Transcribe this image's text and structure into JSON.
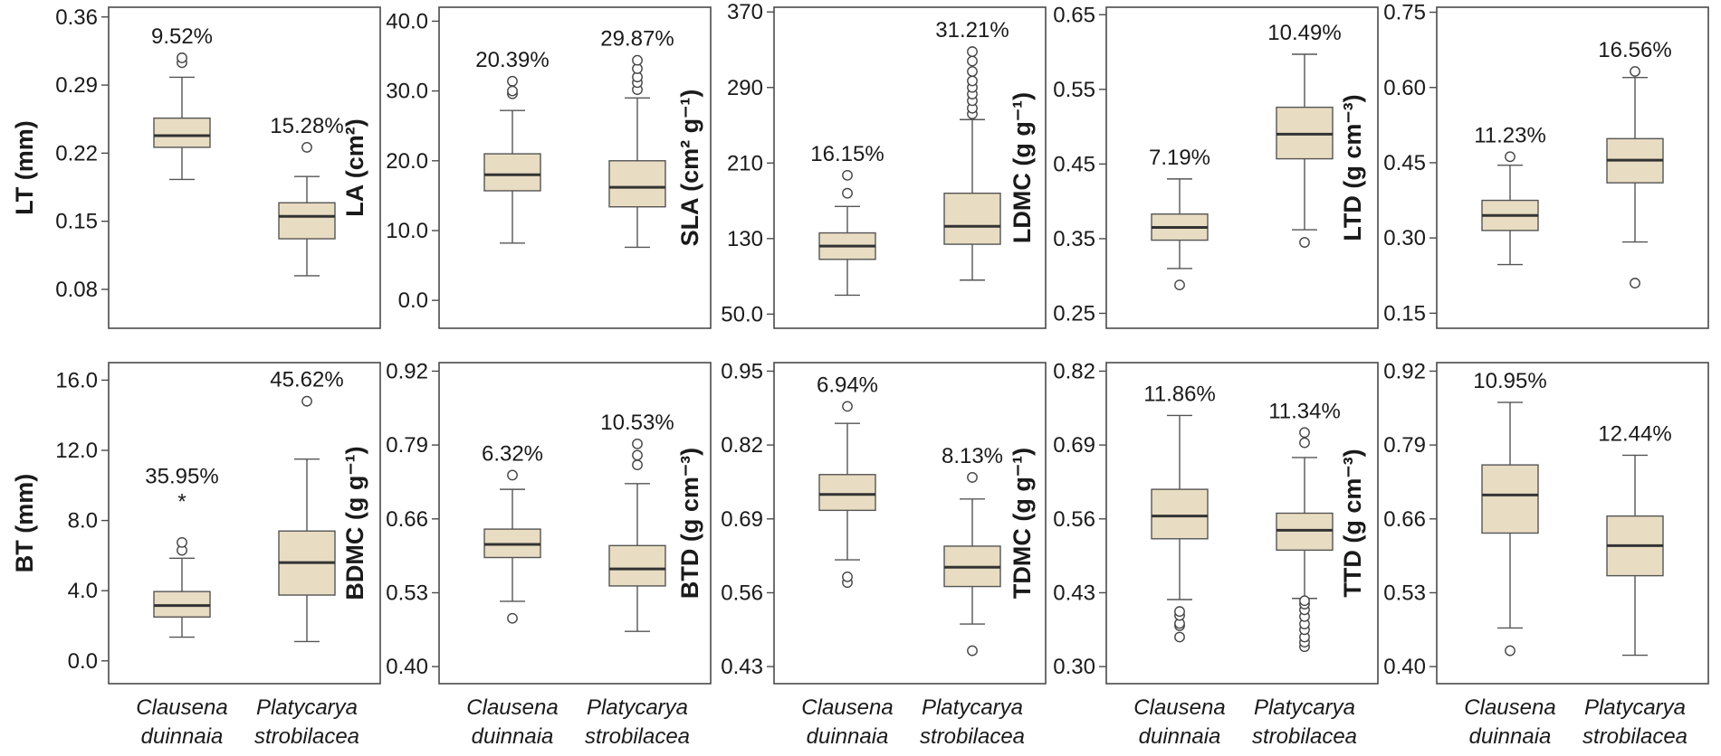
{
  "chart_data": [
    {
      "id": "lt",
      "type": "box",
      "ylabel": "LT (mm)",
      "ylim": [
        0.04,
        0.37
      ],
      "yticks": [
        0.08,
        0.15,
        0.22,
        0.29,
        0.36
      ],
      "ytick_labels": [
        "0.08",
        "0.15",
        "0.22",
        "0.29",
        "0.36"
      ],
      "categories": [
        "Clausena duinnaia",
        "Platycarya strobilacea"
      ],
      "boxes": [
        {
          "min": 0.193,
          "q1": 0.226,
          "median": 0.238,
          "q3": 0.256,
          "max": 0.298,
          "outliers": [
            0.313,
            0.318
          ],
          "cv": "9.52%"
        },
        {
          "min": 0.094,
          "q1": 0.132,
          "median": 0.155,
          "q3": 0.169,
          "max": 0.196,
          "outliers": [
            0.226
          ],
          "cv": "15.28%"
        }
      ]
    },
    {
      "id": "la",
      "type": "box",
      "ylabel": "LA (cm²)",
      "ylim": [
        -4,
        42
      ],
      "yticks": [
        0,
        10,
        20,
        30,
        40
      ],
      "ytick_labels": [
        "0.0",
        "10.0",
        "20.0",
        "30.0",
        "40.0"
      ],
      "categories": [
        "Clausena duinnaia",
        "Platycarya strobilacea"
      ],
      "boxes": [
        {
          "min": 8.2,
          "q1": 15.7,
          "median": 18,
          "q3": 21,
          "max": 27.2,
          "outliers": [
            29.6,
            30,
            31.4
          ],
          "cv": "20.39%"
        },
        {
          "min": 7.6,
          "q1": 13.4,
          "median": 16.2,
          "q3": 20,
          "max": 29,
          "outliers": [
            30.2,
            31.2,
            32,
            33.2,
            34.4
          ],
          "cv": "29.87%"
        }
      ]
    },
    {
      "id": "sla",
      "type": "box",
      "ylabel": "SLA (cm² g⁻¹)",
      "ylim": [
        35,
        375
      ],
      "yticks": [
        50,
        130,
        210,
        290,
        370
      ],
      "ytick_labels": [
        "50.0",
        "130",
        "210",
        "290",
        "370"
      ],
      "categories": [
        "Clausena duinnaia",
        "Platycarya strobilacea"
      ],
      "boxes": [
        {
          "min": 70,
          "q1": 108,
          "median": 122,
          "q3": 136,
          "max": 164,
          "outliers": [
            178,
            197
          ],
          "cv": "16.15%"
        },
        {
          "min": 86,
          "q1": 124,
          "median": 143,
          "q3": 178,
          "max": 256,
          "outliers": [
            262,
            268,
            276,
            283,
            290,
            297,
            307,
            318,
            328
          ],
          "cv": "31.21%"
        }
      ]
    },
    {
      "id": "ldmc",
      "type": "box",
      "ylabel": "LDMC (g g⁻¹)",
      "ylim": [
        0.23,
        0.66
      ],
      "yticks": [
        0.25,
        0.35,
        0.45,
        0.55,
        0.65
      ],
      "ytick_labels": [
        "0.25",
        "0.35",
        "0.45",
        "0.55",
        "0.65"
      ],
      "categories": [
        "Clausena duinnaia",
        "Platycarya strobilacea"
      ],
      "boxes": [
        {
          "min": 0.31,
          "q1": 0.348,
          "median": 0.365,
          "q3": 0.383,
          "max": 0.43,
          "outliers": [
            0.288
          ],
          "cv": "7.19%"
        },
        {
          "min": 0.362,
          "q1": 0.457,
          "median": 0.49,
          "q3": 0.526,
          "max": 0.597,
          "outliers": [
            0.345
          ],
          "cv": "10.49%"
        }
      ]
    },
    {
      "id": "ltd",
      "type": "box",
      "ylabel": "LTD (g cm⁻³)",
      "ylim": [
        0.12,
        0.76
      ],
      "yticks": [
        0.15,
        0.3,
        0.45,
        0.6,
        0.75
      ],
      "ytick_labels": [
        "0.15",
        "0.30",
        "0.45",
        "0.60",
        "0.75"
      ],
      "categories": [
        "Clausena duinnaia",
        "Platycarya strobilacea"
      ],
      "boxes": [
        {
          "min": 0.247,
          "q1": 0.315,
          "median": 0.345,
          "q3": 0.375,
          "max": 0.445,
          "outliers": [
            0.462
          ],
          "cv": "11.23%"
        },
        {
          "min": 0.292,
          "q1": 0.41,
          "median": 0.455,
          "q3": 0.498,
          "max": 0.62,
          "outliers": [
            0.21,
            0.632
          ],
          "cv": "16.56%"
        }
      ]
    },
    {
      "id": "bt",
      "type": "box",
      "ylabel": "BT (mm)",
      "ylim": [
        -1.3,
        17
      ],
      "yticks": [
        0,
        4,
        8,
        12,
        16
      ],
      "ytick_labels": [
        "0.0",
        "4.0",
        "8.0",
        "12.0",
        "16.0"
      ],
      "categories": [
        "Clausena duinnaia",
        "Platycarya strobilacea"
      ],
      "boxes": [
        {
          "min": 1.35,
          "q1": 2.5,
          "median": 3.15,
          "q3": 3.95,
          "max": 5.85,
          "outliers": [
            6.3,
            6.75
          ],
          "extreme": [
            9.3
          ],
          "cv": "35.95%"
        },
        {
          "min": 1.1,
          "q1": 3.75,
          "median": 5.6,
          "q3": 7.4,
          "max": 11.5,
          "outliers": [
            14.8
          ],
          "cv": "45.62%"
        }
      ]
    },
    {
      "id": "bdmc",
      "type": "box",
      "ylabel": "BDMC (g g⁻¹)",
      "ylim": [
        0.37,
        0.935
      ],
      "yticks": [
        0.4,
        0.53,
        0.66,
        0.79,
        0.92
      ],
      "ytick_labels": [
        "0.40",
        "0.53",
        "0.66",
        "0.79",
        "0.92"
      ],
      "categories": [
        "Clausena duinnaia",
        "Platycarya strobilacea"
      ],
      "boxes": [
        {
          "min": 0.515,
          "q1": 0.592,
          "median": 0.615,
          "q3": 0.642,
          "max": 0.712,
          "outliers": [
            0.485,
            0.737
          ],
          "cv": "6.32%"
        },
        {
          "min": 0.462,
          "q1": 0.542,
          "median": 0.572,
          "q3": 0.613,
          "max": 0.722,
          "outliers": [
            0.755,
            0.772,
            0.792
          ],
          "cv": "10.53%"
        }
      ]
    },
    {
      "id": "btd",
      "type": "box",
      "ylabel": "BTD (g cm⁻³)",
      "ylim": [
        0.4,
        0.965
      ],
      "yticks": [
        0.43,
        0.56,
        0.69,
        0.82,
        0.95
      ],
      "ytick_labels": [
        "0.43",
        "0.56",
        "0.69",
        "0.82",
        "0.95"
      ],
      "categories": [
        "Clausena duinnaia",
        "Platycarya strobilacea"
      ],
      "boxes": [
        {
          "min": 0.618,
          "q1": 0.705,
          "median": 0.733,
          "q3": 0.768,
          "max": 0.858,
          "outliers": [
            0.578,
            0.588,
            0.888
          ],
          "cv": "6.94%"
        },
        {
          "min": 0.505,
          "q1": 0.571,
          "median": 0.605,
          "q3": 0.642,
          "max": 0.725,
          "outliers": [
            0.458,
            0.763
          ],
          "cv": "8.13%"
        }
      ]
    },
    {
      "id": "tdmc",
      "type": "box",
      "ylabel": "TDMC (g g⁻¹)",
      "ylim": [
        0.27,
        0.835
      ],
      "yticks": [
        0.3,
        0.43,
        0.56,
        0.69,
        0.82
      ],
      "ytick_labels": [
        "0.30",
        "0.43",
        "0.56",
        "0.69",
        "0.82"
      ],
      "categories": [
        "Clausena duinnaia",
        "Platycarya strobilacea"
      ],
      "boxes": [
        {
          "min": 0.418,
          "q1": 0.525,
          "median": 0.565,
          "q3": 0.612,
          "max": 0.742,
          "outliers": [
            0.352,
            0.372,
            0.376,
            0.39,
            0.397
          ],
          "cv": "11.86%"
        },
        {
          "min": 0.42,
          "q1": 0.505,
          "median": 0.54,
          "q3": 0.57,
          "max": 0.668,
          "outliers": [
            0.335,
            0.343,
            0.352,
            0.365,
            0.375,
            0.388,
            0.4,
            0.41,
            0.416,
            0.694,
            0.712
          ],
          "cv": "11.34%"
        }
      ]
    },
    {
      "id": "ttd",
      "type": "box",
      "ylabel": "TTD (g cm⁻³)",
      "ylim": [
        0.37,
        0.935
      ],
      "yticks": [
        0.4,
        0.53,
        0.66,
        0.79,
        0.92
      ],
      "ytick_labels": [
        "0.40",
        "0.53",
        "0.66",
        "0.79",
        "0.92"
      ],
      "categories": [
        "Clausena duinnaia",
        "Platycarya strobilacea"
      ],
      "boxes": [
        {
          "min": 0.468,
          "q1": 0.635,
          "median": 0.702,
          "q3": 0.755,
          "max": 0.865,
          "outliers": [
            0.428
          ],
          "cv": "10.95%"
        },
        {
          "min": 0.42,
          "q1": 0.56,
          "median": 0.613,
          "q3": 0.665,
          "max": 0.772,
          "outliers": [],
          "cv": "12.44%"
        }
      ]
    }
  ],
  "x_categories": [
    {
      "line1": "Clausena",
      "line2": "duinnaia"
    },
    {
      "line1": "Platycarya",
      "line2": "strobilacea"
    }
  ]
}
